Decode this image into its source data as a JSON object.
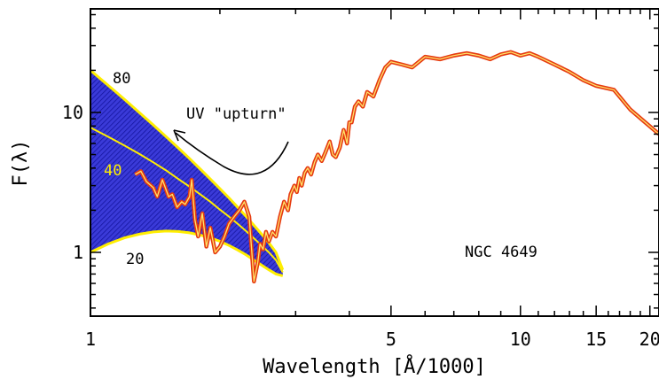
{
  "chart_data": {
    "type": "line",
    "title": "",
    "xlabel": "Wavelength [Å/1000]",
    "ylabel": "F(λ)",
    "x_scale": "log",
    "y_scale": "log",
    "xlim": [
      1,
      21
    ],
    "ylim": [
      0.35,
      55
    ],
    "x_ticks": [
      {
        "value": 1,
        "label": "1"
      },
      {
        "value": 5,
        "label": "5"
      },
      {
        "value": 10,
        "label": "10"
      },
      {
        "value": 15,
        "label": "15"
      },
      {
        "value": 20,
        "label": "20"
      }
    ],
    "y_ticks": [
      {
        "value": 1,
        "label": "1"
      },
      {
        "value": 10,
        "label": "10"
      }
    ],
    "grid": false,
    "series": [
      {
        "color": "#e63a10",
        "x": [
          1.27,
          1.31,
          1.35,
          1.4,
          1.43,
          1.47,
          1.52,
          1.55,
          1.59,
          1.63,
          1.66,
          1.7,
          1.72,
          1.75,
          1.78,
          1.82,
          1.86,
          1.9,
          1.95,
          2.0,
          2.05,
          2.1,
          2.16,
          2.22,
          2.28,
          2.34,
          2.4,
          2.45,
          2.48,
          2.52,
          2.56,
          2.6,
          2.65,
          2.7,
          2.76,
          2.82,
          2.88,
          2.92,
          2.98,
          3.02,
          3.06,
          3.1,
          3.15,
          3.2,
          3.26,
          3.32,
          3.38,
          3.45,
          3.52,
          3.6,
          3.66,
          3.72,
          3.8,
          3.88,
          3.95,
          4.0,
          4.05,
          4.12,
          4.2,
          4.3,
          4.4,
          4.55,
          4.7,
          4.85,
          5.0,
          5.3,
          5.6,
          6.0,
          6.5,
          7.0,
          7.5,
          8.0,
          8.5,
          9.0,
          9.5,
          10.0,
          10.5,
          11.0,
          12.0,
          13.0,
          14.0,
          15.0,
          16.5,
          18.0,
          19.5,
          21.0
        ],
        "y": [
          3.6,
          3.8,
          3.2,
          2.9,
          2.5,
          3.3,
          2.5,
          2.6,
          2.1,
          2.3,
          2.2,
          2.5,
          3.3,
          1.7,
          1.3,
          1.9,
          1.1,
          1.5,
          1.0,
          1.1,
          1.3,
          1.6,
          1.8,
          2.0,
          2.3,
          1.8,
          0.62,
          0.85,
          1.15,
          1.05,
          1.4,
          1.2,
          1.4,
          1.3,
          1.8,
          2.3,
          2.0,
          2.6,
          3.0,
          2.7,
          3.4,
          3.0,
          3.7,
          4.0,
          3.6,
          4.4,
          5.0,
          4.5,
          5.2,
          6.2,
          5.0,
          4.8,
          5.6,
          7.5,
          6.0,
          8.5,
          8.5,
          11.0,
          12.0,
          11.0,
          14.0,
          13.0,
          17.0,
          21.0,
          23.0,
          22.0,
          21.0,
          25.0,
          24.0,
          25.5,
          26.5,
          25.5,
          24.0,
          26.0,
          27.0,
          25.5,
          26.5,
          25.0,
          22.0,
          19.5,
          17.0,
          15.5,
          14.5,
          10.5,
          8.5,
          7.0
        ]
      }
    ],
    "band": {
      "fill": "#2626c8",
      "edge_color": "#ffee00",
      "upper_label": "80",
      "middle_label": "40",
      "lower_label": "20",
      "x": [
        1.0,
        1.1,
        1.2,
        1.3,
        1.4,
        1.5,
        1.6,
        1.7,
        1.8,
        1.9,
        2.0,
        2.1,
        2.2,
        2.3,
        2.4,
        2.5,
        2.6,
        2.7,
        2.8
      ],
      "upper": [
        20,
        15.6,
        12.4,
        9.96,
        8.13,
        6.7,
        5.58,
        4.68,
        3.94,
        3.34,
        2.85,
        2.45,
        2.1,
        1.81,
        1.56,
        1.35,
        1.17,
        1.0,
        0.75
      ],
      "middle": [
        7.8,
        6.7,
        5.8,
        5.05,
        4.4,
        3.85,
        3.35,
        2.95,
        2.6,
        2.3,
        2.02,
        1.8,
        1.6,
        1.42,
        1.26,
        1.12,
        1.0,
        0.88,
        0.72
      ],
      "lower": [
        1.0,
        1.15,
        1.27,
        1.35,
        1.4,
        1.42,
        1.41,
        1.38,
        1.33,
        1.27,
        1.2,
        1.12,
        1.04,
        0.96,
        0.88,
        0.81,
        0.75,
        0.7,
        0.68
      ]
    },
    "annotations": [
      {
        "text": "UV \"upturn\"",
        "x": 1.98,
        "y": 10.0
      },
      {
        "text": "NGC 4649",
        "x": 9.0,
        "y": 1.0
      }
    ]
  }
}
